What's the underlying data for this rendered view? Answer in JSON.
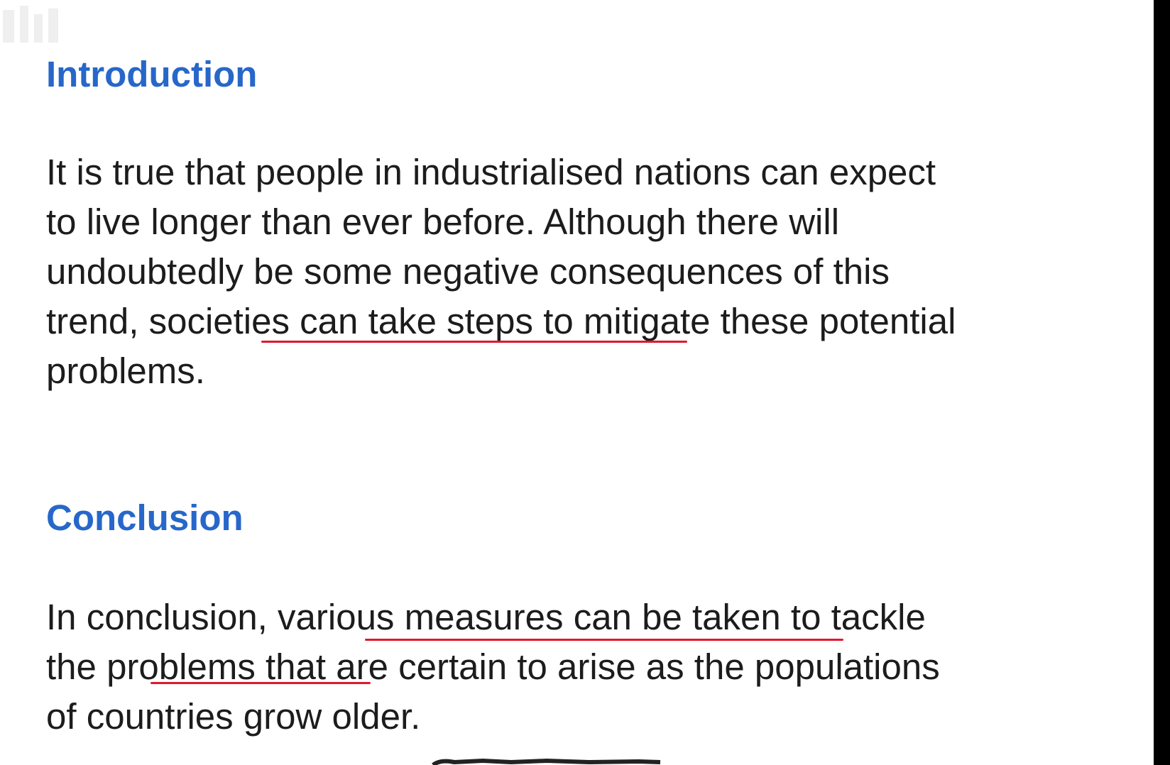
{
  "introduction": {
    "heading": "Introduction",
    "lines": [
      "It is true that people in industrialised nations can expect",
      "to live longer than ever before. Although there will",
      "undoubtedly be some negative consequences of this",
      "trend, societies can take steps to mitigate these potential",
      "problems."
    ]
  },
  "conclusion": {
    "heading": "Conclusion",
    "lines": [
      "In conclusion, various measures can be taken to tackle",
      "the problems that are certain to arise as the populations",
      "of countries grow older."
    ]
  },
  "annotation_color": "#e0182c",
  "heading_color": "#2767c9"
}
